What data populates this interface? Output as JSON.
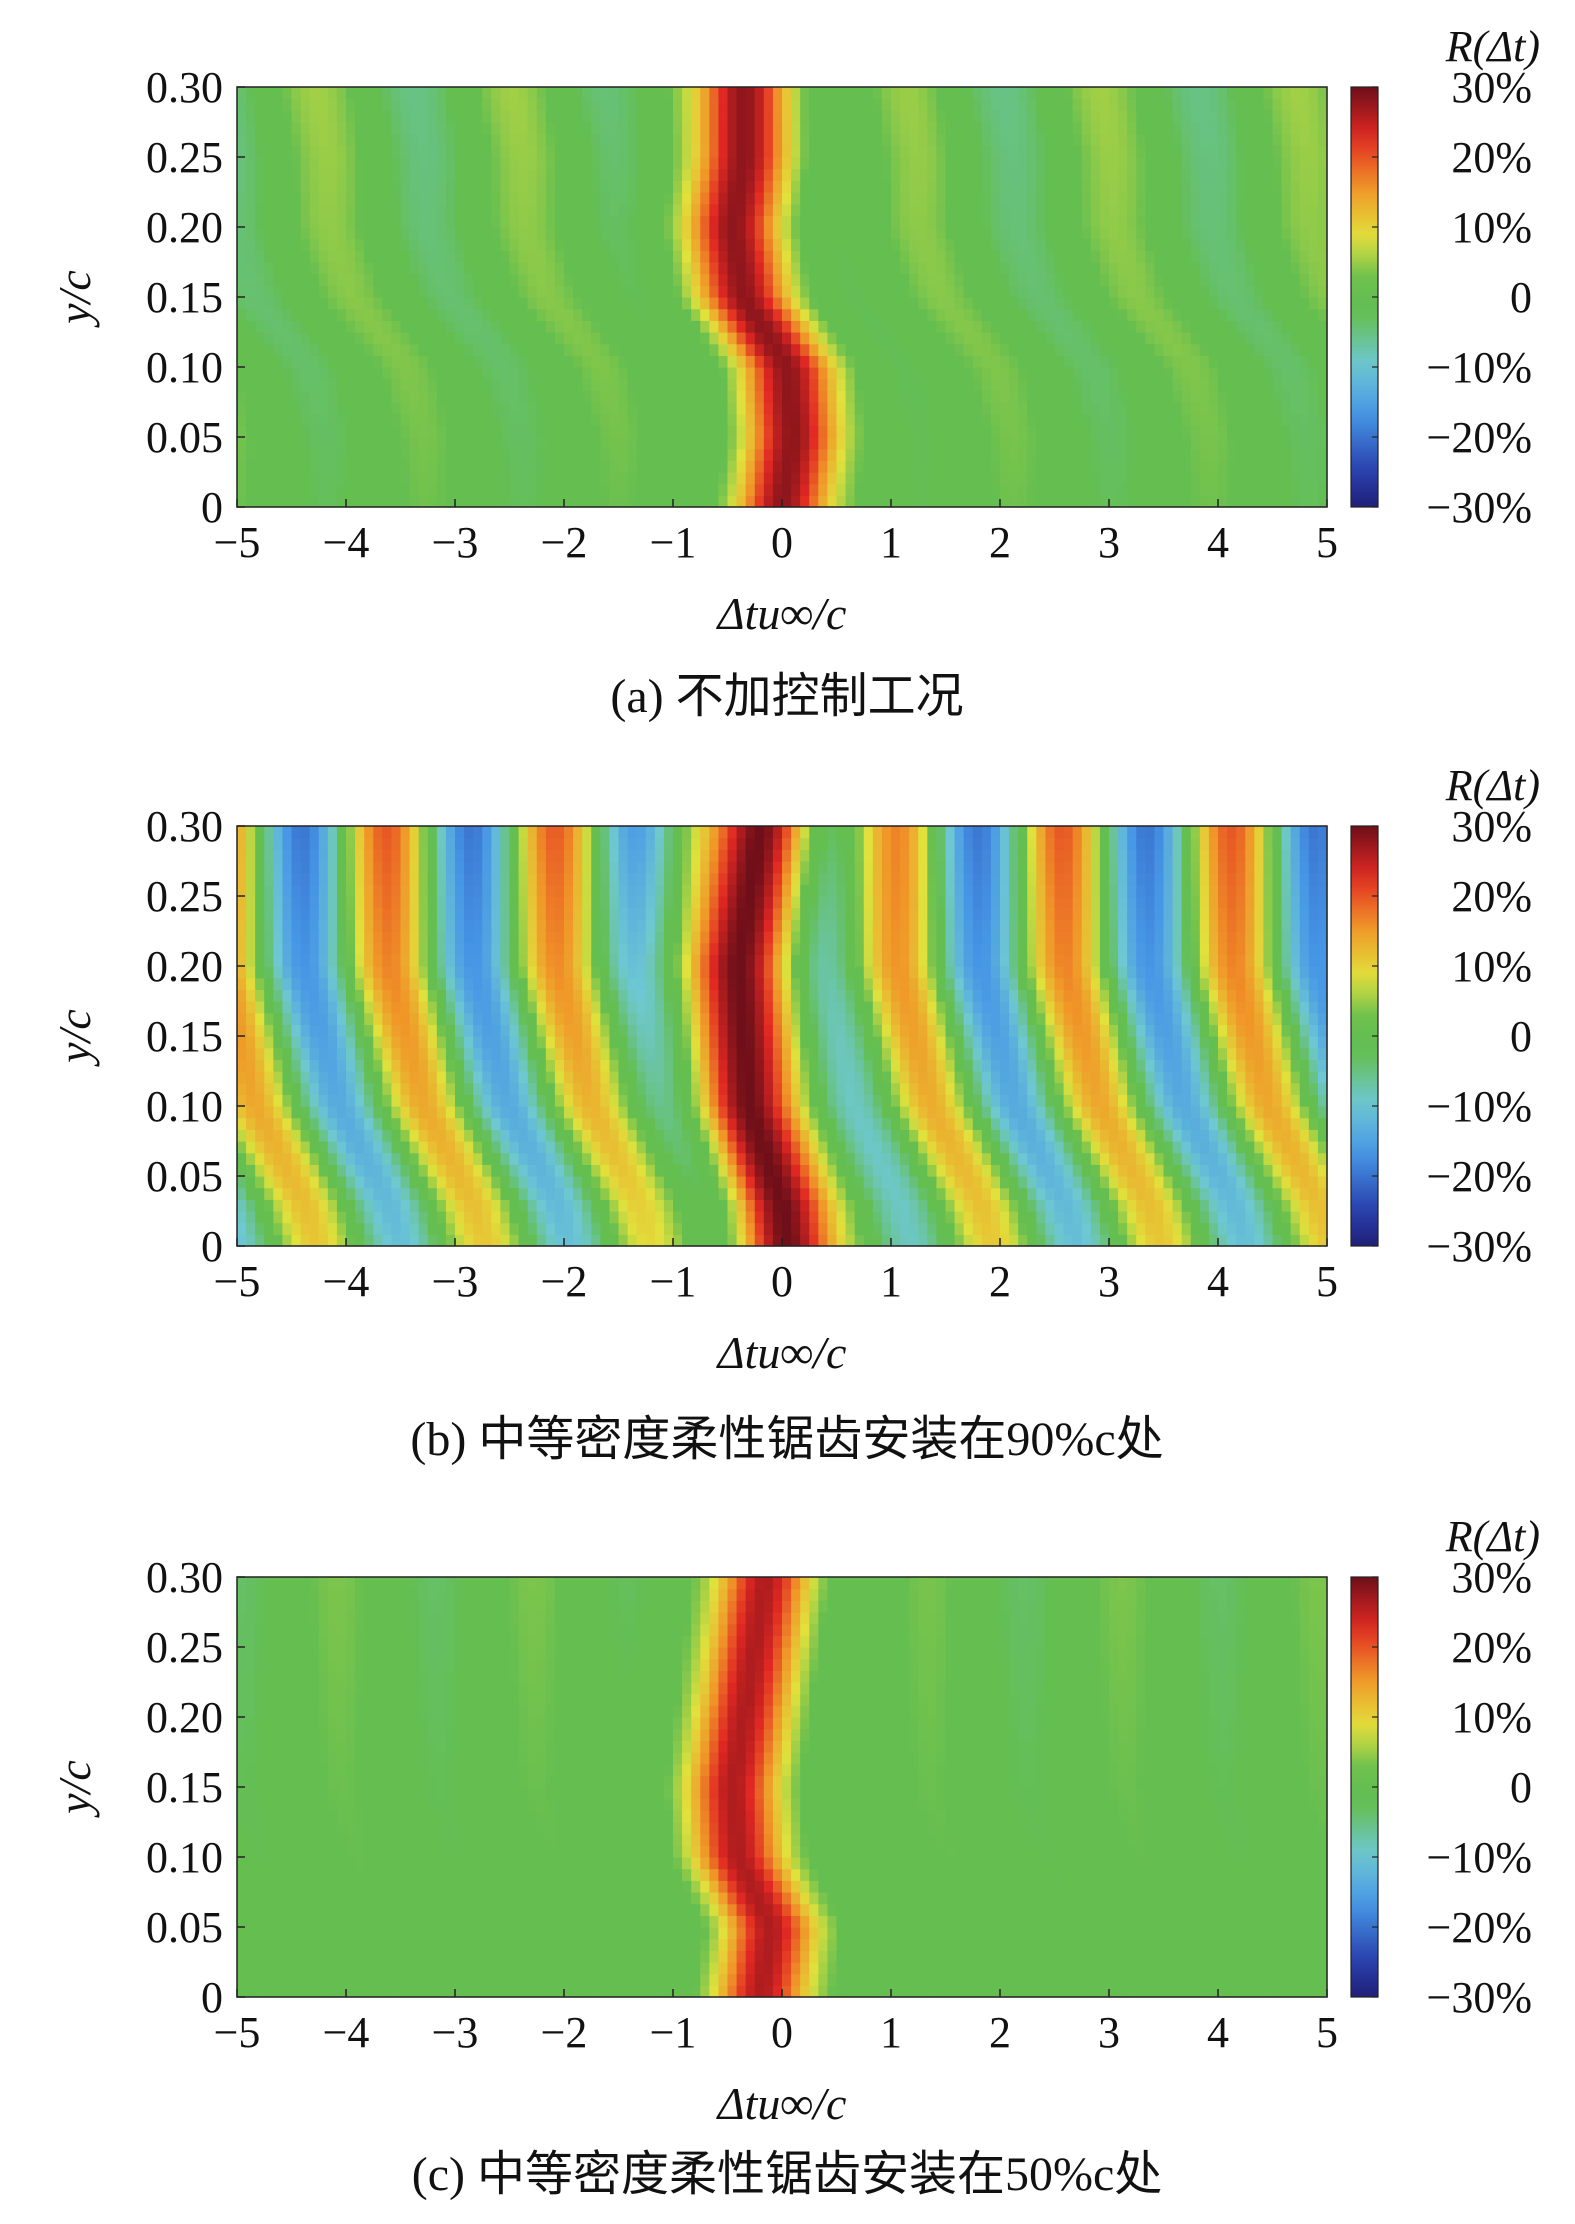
{
  "chart_data": [
    {
      "type": "heatmap",
      "caption": "(a) 不加控制工况",
      "xlabel": "Δtu∞/c",
      "ylabel": "y/c",
      "colorbar_title": "R(Δt)",
      "xlim": [
        -5,
        5
      ],
      "ylim": [
        0,
        0.3
      ],
      "xticks": [
        -5,
        -4,
        -3,
        -2,
        -1,
        0,
        1,
        2,
        3,
        4,
        5
      ],
      "xtick_labels": [
        "−5",
        "−4",
        "−3",
        "−2",
        "−1",
        "0",
        "1",
        "2",
        "3",
        "4",
        "5"
      ],
      "yticks": [
        0,
        0.05,
        0.1,
        0.15,
        0.2,
        0.25,
        0.3
      ],
      "ytick_labels": [
        "0",
        "0.05",
        "0.10",
        "0.15",
        "0.20",
        "0.25",
        "0.30"
      ],
      "colorbar_ticks": [
        30,
        20,
        10,
        0,
        -10,
        -20,
        -30
      ],
      "colorbar_labels": [
        "30%",
        "20%",
        "10%",
        "0",
        "−10%",
        "−20%",
        "−30%"
      ],
      "ridge": [
        [
          -0.35,
          0.25
        ],
        [
          -0.45,
          0.2
        ],
        [
          -0.35,
          0.15
        ],
        [
          0.05,
          0.1
        ],
        [
          0.1,
          0.05
        ],
        [
          0.0,
          0.0
        ]
      ],
      "peak_value": 28,
      "side_amplitude": 6,
      "side_period": 1.8,
      "background": 0
    },
    {
      "type": "heatmap",
      "caption": "(b) 中等密度柔性锯齿安装在90%c处",
      "xlabel": "Δtu∞/c",
      "ylabel": "y/c",
      "colorbar_title": "R(Δt)",
      "xlim": [
        -5,
        5
      ],
      "ylim": [
        0,
        0.3
      ],
      "xticks": [
        -5,
        -4,
        -3,
        -2,
        -1,
        0,
        1,
        2,
        3,
        4,
        5
      ],
      "xtick_labels": [
        "−5",
        "−4",
        "−3",
        "−2",
        "−1",
        "0",
        "1",
        "2",
        "3",
        "4",
        "5"
      ],
      "yticks": [
        0,
        0.05,
        0.1,
        0.15,
        0.2,
        0.25,
        0.3
      ],
      "ytick_labels": [
        "0",
        "0.05",
        "0.10",
        "0.15",
        "0.20",
        "0.25",
        "0.30"
      ],
      "colorbar_ticks": [
        30,
        20,
        10,
        0,
        -10,
        -20,
        -30
      ],
      "colorbar_labels": [
        "30%",
        "20%",
        "10%",
        "0",
        "−10%",
        "−20%",
        "−30%"
      ],
      "ridge": [
        [
          -0.2,
          0.3
        ],
        [
          -0.4,
          0.2
        ],
        [
          -0.3,
          0.1
        ],
        [
          0.0,
          0.03
        ],
        [
          0.05,
          0.0
        ]
      ],
      "peak_value": 30,
      "side_amplitude": 22,
      "side_period": 1.55,
      "background": 0
    },
    {
      "type": "heatmap",
      "caption": "(c) 中等密度柔性锯齿安装在50%c处",
      "xlabel": "Δtu∞/c",
      "ylabel": "y/c",
      "colorbar_title": "R(Δt)",
      "xlim": [
        -5,
        5
      ],
      "ylim": [
        0,
        0.3
      ],
      "xticks": [
        -5,
        -4,
        -3,
        -2,
        -1,
        0,
        1,
        2,
        3,
        4,
        5
      ],
      "xtick_labels": [
        "−5",
        "−4",
        "−3",
        "−2",
        "−1",
        "0",
        "1",
        "2",
        "3",
        "4",
        "5"
      ],
      "yticks": [
        0,
        0.05,
        0.1,
        0.15,
        0.2,
        0.25,
        0.3
      ],
      "ytick_labels": [
        "0",
        "0.05",
        "0.10",
        "0.15",
        "0.20",
        "0.25",
        "0.30"
      ],
      "colorbar_ticks": [
        30,
        20,
        10,
        0,
        -10,
        -20,
        -30
      ],
      "colorbar_labels": [
        "30%",
        "20%",
        "10%",
        "0",
        "−10%",
        "−20%",
        "−30%"
      ],
      "ridge": [
        [
          -0.15,
          0.3
        ],
        [
          -0.35,
          0.2
        ],
        [
          -0.45,
          0.15
        ],
        [
          -0.4,
          0.1
        ],
        [
          -0.1,
          0.05
        ],
        [
          -0.2,
          0.0
        ]
      ],
      "peak_value": 26,
      "side_amplitude": 4,
      "side_period": 1.8,
      "background": 0
    }
  ]
}
